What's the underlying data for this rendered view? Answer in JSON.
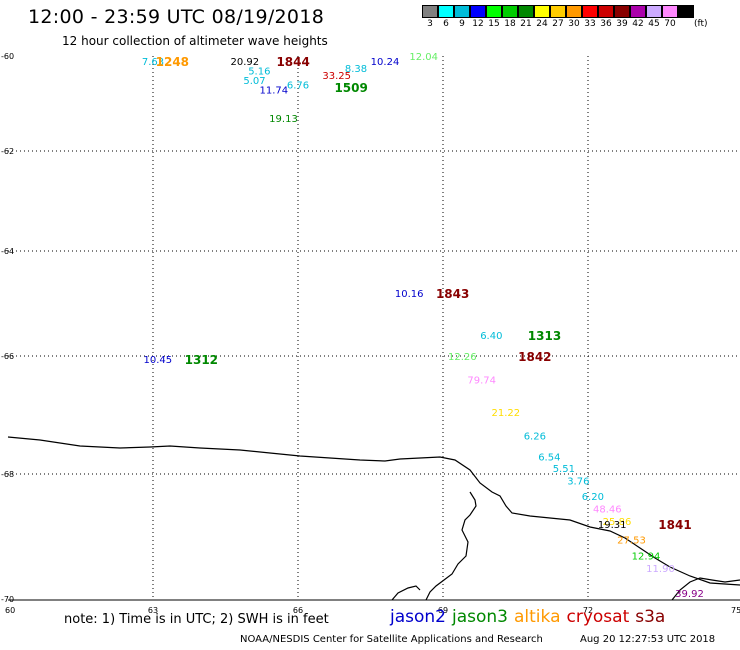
{
  "header": {
    "title": "12:00 - 23:59 UTC 08/19/2018",
    "subtitle": "12 hour collection of altimeter wave heights"
  },
  "legend": {
    "unit": "(ft)",
    "bins": [
      {
        "label": "3",
        "color": "#808080"
      },
      {
        "label": "6",
        "color": "#00ffff"
      },
      {
        "label": "9",
        "color": "#00bcd8"
      },
      {
        "label": "12",
        "color": "#0000ff"
      },
      {
        "label": "15",
        "color": "#00ff00"
      },
      {
        "label": "18",
        "color": "#00cc00"
      },
      {
        "label": "21",
        "color": "#008800"
      },
      {
        "label": "24",
        "color": "#ffff00"
      },
      {
        "label": "27",
        "color": "#ffcc00"
      },
      {
        "label": "30",
        "color": "#ff9900"
      },
      {
        "label": "33",
        "color": "#ff0000"
      },
      {
        "label": "36",
        "color": "#cc0000"
      },
      {
        "label": "39",
        "color": "#880000"
      },
      {
        "label": "42",
        "color": "#aa00aa"
      },
      {
        "label": "45",
        "color": "#ccaaff"
      },
      {
        "label": "70",
        "color": "#ff88ff"
      },
      {
        "label": "",
        "color": "#000000"
      }
    ]
  },
  "map": {
    "lon_ticks": [
      "60",
      "63",
      "66",
      "69",
      "72",
      "75"
    ],
    "lat_ticks": [
      "-60",
      "-62",
      "-64",
      "-66",
      "-68",
      "-70"
    ],
    "observations": [
      {
        "text": "7.63",
        "lon": 63.0,
        "lat": -60.1,
        "color": "#00bcd8"
      },
      {
        "text": "20.92",
        "lon": 64.9,
        "lat": -60.1,
        "color": "#000000"
      },
      {
        "text": "5.16",
        "lon": 65.2,
        "lat": -60.3,
        "color": "#00bcd8"
      },
      {
        "text": "5.07",
        "lon": 65.1,
        "lat": -60.5,
        "color": "#00bcd8"
      },
      {
        "text": "11.74",
        "lon": 65.5,
        "lat": -60.7,
        "color": "#0000cc"
      },
      {
        "text": "6.76",
        "lon": 66.0,
        "lat": -60.6,
        "color": "#00bcd8"
      },
      {
        "text": "33.25",
        "lon": 66.8,
        "lat": -60.4,
        "color": "#cc0000"
      },
      {
        "text": "8.38",
        "lon": 67.2,
        "lat": -60.25,
        "color": "#00bcd8"
      },
      {
        "text": "10.24",
        "lon": 67.8,
        "lat": -60.1,
        "color": "#0000cc"
      },
      {
        "text": "12.04",
        "lon": 68.6,
        "lat": -60.0,
        "color": "#66ee66"
      },
      {
        "text": "19.13",
        "lon": 65.7,
        "lat": -61.3,
        "color": "#008800"
      },
      {
        "text": "10.16",
        "lon": 68.3,
        "lat": -64.8,
        "color": "#0000cc"
      },
      {
        "text": "6.40",
        "lon": 70.0,
        "lat": -65.6,
        "color": "#00bcd8"
      },
      {
        "text": "12.26",
        "lon": 69.4,
        "lat": -66.0,
        "color": "#66ee66"
      },
      {
        "text": "10.45",
        "lon": 63.1,
        "lat": -66.05,
        "color": "#0000cc"
      },
      {
        "text": "79.74",
        "lon": 69.8,
        "lat": -66.4,
        "color": "#ff88ff"
      },
      {
        "text": "21.22",
        "lon": 70.3,
        "lat": -66.95,
        "color": "#ffdd00"
      },
      {
        "text": "6.26",
        "lon": 70.9,
        "lat": -67.35,
        "color": "#00bcd8"
      },
      {
        "text": "6.54",
        "lon": 71.2,
        "lat": -67.7,
        "color": "#00bcd8"
      },
      {
        "text": "5.51",
        "lon": 71.5,
        "lat": -67.9,
        "color": "#00bcd8"
      },
      {
        "text": "3.76",
        "lon": 71.8,
        "lat": -68.1,
        "color": "#00bcd8"
      },
      {
        "text": "6.20",
        "lon": 72.1,
        "lat": -68.35,
        "color": "#00bcd8"
      },
      {
        "text": "48.46",
        "lon": 72.4,
        "lat": -68.55,
        "color": "#ff88ff"
      },
      {
        "text": "25.86",
        "lon": 72.6,
        "lat": -68.75,
        "color": "#ffdd00"
      },
      {
        "text": "19.31",
        "lon": 72.5,
        "lat": -68.8,
        "color": "#000000"
      },
      {
        "text": "27.53",
        "lon": 72.9,
        "lat": -69.05,
        "color": "#ff9900"
      },
      {
        "text": "12.94",
        "lon": 73.2,
        "lat": -69.3,
        "color": "#00cc00"
      },
      {
        "text": "11.90",
        "lon": 73.5,
        "lat": -69.5,
        "color": "#ccaaff"
      },
      {
        "text": "39.92",
        "lon": 74.1,
        "lat": -69.9,
        "color": "#880088"
      }
    ],
    "pass_times": [
      {
        "text": "1248",
        "lon": 63.4,
        "lat": -60.1,
        "color": "#ff9900"
      },
      {
        "text": "1844",
        "lon": 65.9,
        "lat": -60.1,
        "color": "#880000"
      },
      {
        "text": "1509",
        "lon": 67.1,
        "lat": -60.65,
        "color": "#008800"
      },
      {
        "text": "1843",
        "lon": 69.2,
        "lat": -64.8,
        "color": "#880000"
      },
      {
        "text": "1313",
        "lon": 71.1,
        "lat": -65.6,
        "color": "#008800"
      },
      {
        "text": "1842",
        "lon": 70.9,
        "lat": -66.0,
        "color": "#880000"
      },
      {
        "text": "1312",
        "lon": 64.0,
        "lat": -66.05,
        "color": "#008800"
      },
      {
        "text": "1841",
        "lon": 73.8,
        "lat": -68.8,
        "color": "#880000"
      }
    ]
  },
  "footer": {
    "note": "note: 1) Time is in UTC; 2) SWH is in feet",
    "satellites": [
      {
        "name": "jason2",
        "color": "#0000cc"
      },
      {
        "name": "jason3",
        "color": "#008800"
      },
      {
        "name": "altika",
        "color": "#ff9900"
      },
      {
        "name": "cryosat",
        "color": "#cc0000"
      },
      {
        "name": "s3a",
        "color": "#880000"
      }
    ],
    "credit": "NOAA/NESDIS Center for Satellite Applications and Research",
    "timestamp": "Aug 20 12:27:53 UTC 2018"
  }
}
